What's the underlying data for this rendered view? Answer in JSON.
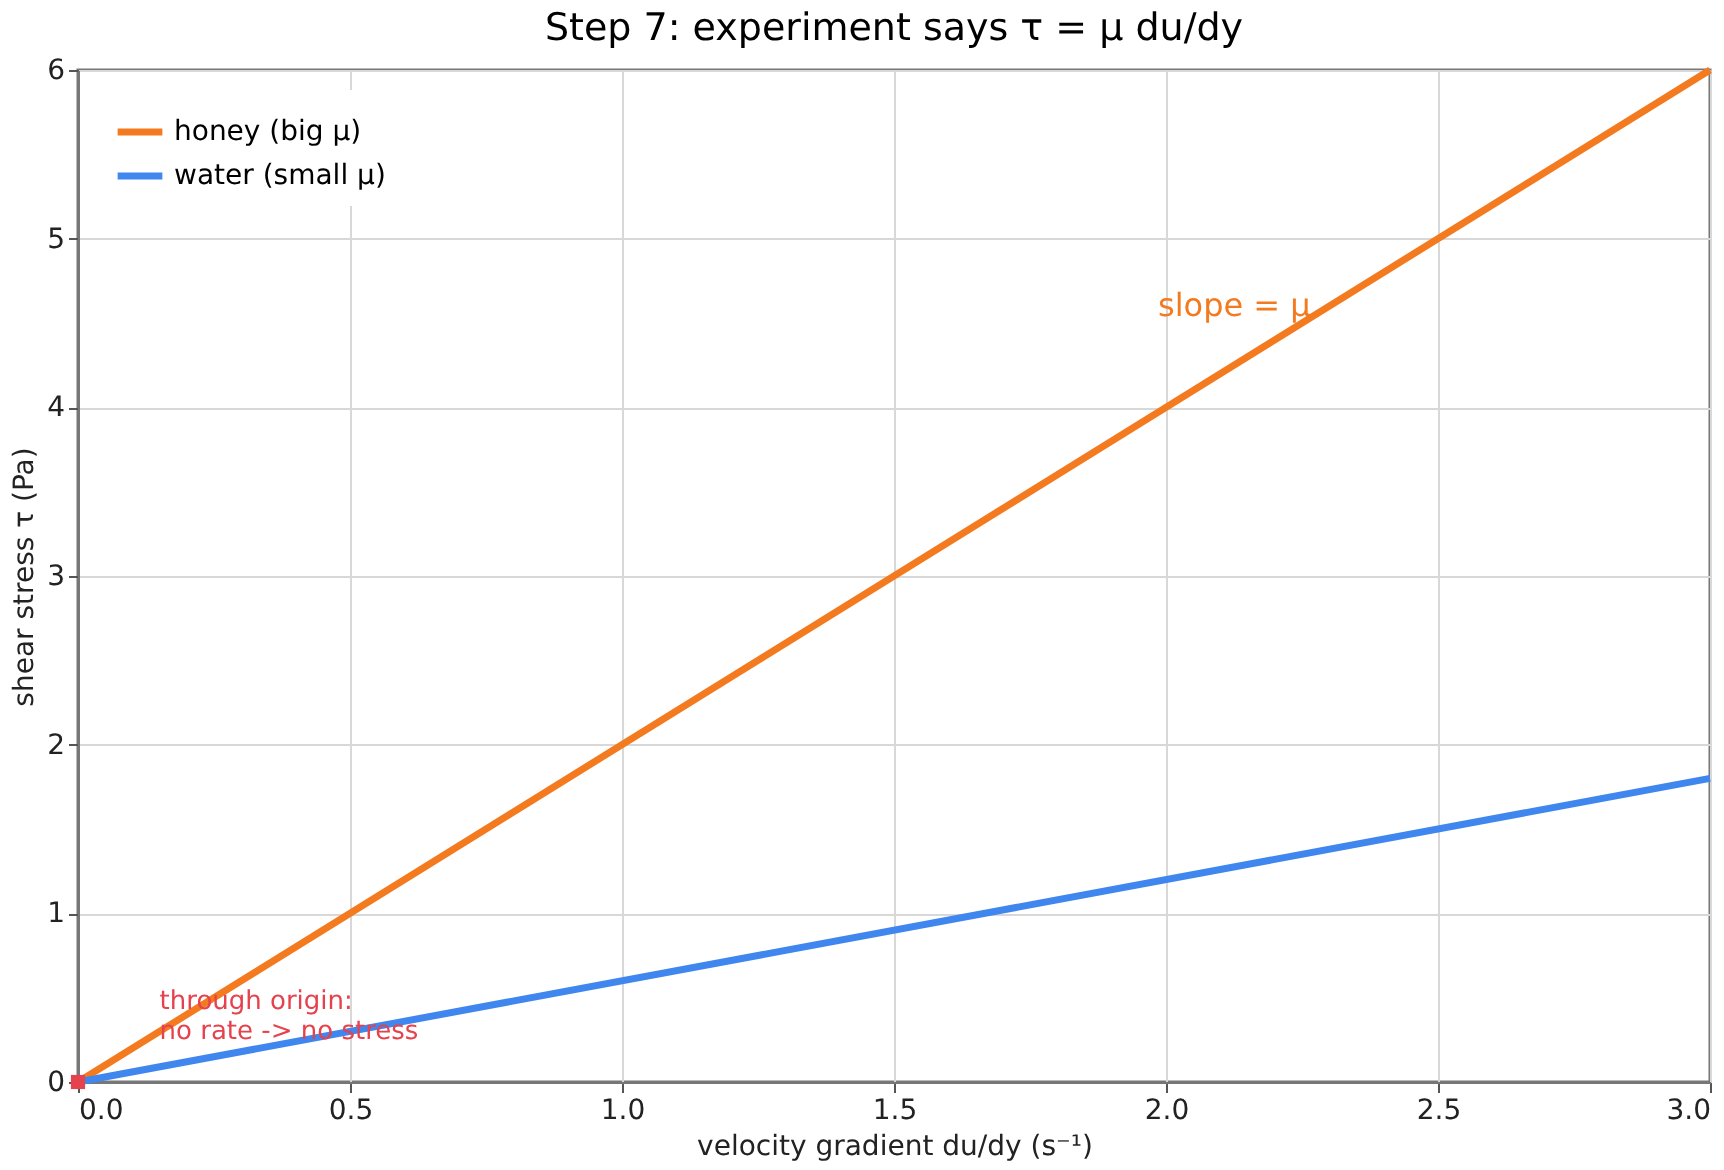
{
  "chart_data": {
    "type": "line",
    "title": "Step 7: experiment says τ = μ du/dy",
    "xlabel": "velocity gradient  du/dy  (s⁻¹)",
    "ylabel": "shear stress  τ  (Pa)",
    "x": [
      0,
      3
    ],
    "series": [
      {
        "name": "honey (big μ)",
        "color": "#f47a1f",
        "values": [
          0,
          6
        ]
      },
      {
        "name": "water (small μ)",
        "color": "#3f86ee",
        "values": [
          0,
          1.8
        ]
      },
      {
        "type": "scatter",
        "color": "#e5424d",
        "x": [
          0
        ],
        "values": [
          0
        ],
        "marker": "square"
      }
    ],
    "xlim": [
      0,
      3
    ],
    "ylim": [
      0,
      6
    ],
    "xticks": [
      {
        "value": 0,
        "label": "0.0"
      },
      0.5,
      {
        "value": 1,
        "label": "1.0"
      },
      1.5,
      {
        "value": 2,
        "label": "2.0"
      },
      2.5,
      {
        "value": 3,
        "label": "3.0"
      }
    ],
    "yticks": [
      0,
      1,
      2,
      3,
      4,
      5,
      6
    ],
    "annotations": [
      "slope = μ",
      {
        "text": "through origin:\nno rate -> no stress",
        "x": 0.15,
        "y": 0.4
      }
    ],
    "grid": true,
    "legend": "top left",
    "line_style": "solid"
  }
}
